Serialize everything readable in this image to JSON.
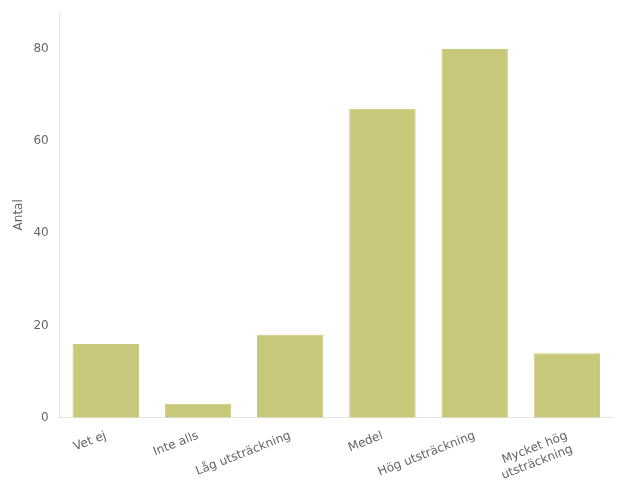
{
  "chart_data": {
    "type": "bar",
    "categories": [
      "Vet ej",
      "Inte alls",
      "Låg utsträckning",
      "Medel",
      "Hög utsträckning",
      "Mycket hög\nutsträckning"
    ],
    "values": [
      16,
      3,
      18,
      67,
      80,
      14
    ],
    "color": "#c8c87a",
    "ylabel": "Antal",
    "ylim": [
      0,
      88
    ],
    "yticks": [
      0,
      20,
      40,
      60,
      80
    ],
    "grid": false
  }
}
